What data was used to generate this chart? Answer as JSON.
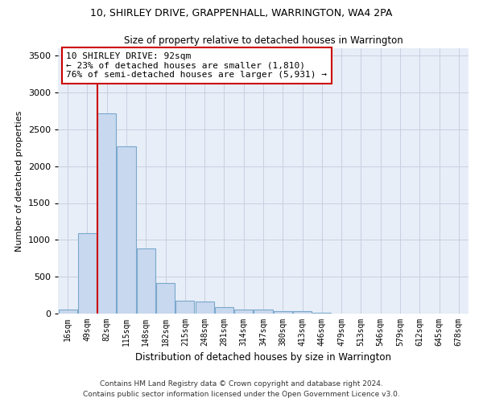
{
  "title": "10, SHIRLEY DRIVE, GRAPPENHALL, WARRINGTON, WA4 2PA",
  "subtitle": "Size of property relative to detached houses in Warrington",
  "xlabel": "Distribution of detached houses by size in Warrington",
  "ylabel": "Number of detached properties",
  "bar_color": "#c8d8ee",
  "bar_edge_color": "#7aa8cc",
  "grid_color": "#c8d0e0",
  "background_color": "#e8eef8",
  "categories": [
    "16sqm",
    "49sqm",
    "82sqm",
    "115sqm",
    "148sqm",
    "182sqm",
    "215sqm",
    "248sqm",
    "281sqm",
    "314sqm",
    "347sqm",
    "380sqm",
    "413sqm",
    "446sqm",
    "479sqm",
    "513sqm",
    "546sqm",
    "579sqm",
    "612sqm",
    "645sqm",
    "678sqm"
  ],
  "values": [
    50,
    1090,
    2720,
    2270,
    880,
    415,
    170,
    160,
    90,
    60,
    50,
    35,
    30,
    10,
    5,
    0,
    0,
    0,
    0,
    0,
    0
  ],
  "ylim": [
    0,
    3600
  ],
  "yticks": [
    0,
    500,
    1000,
    1500,
    2000,
    2500,
    3000,
    3500
  ],
  "annotation_text": "10 SHIRLEY DRIVE: 92sqm\n← 23% of detached houses are smaller (1,810)\n76% of semi-detached houses are larger (5,931) →",
  "annotation_box_color": "#ffffff",
  "annotation_border_color": "#cc0000",
  "red_line_color": "#cc0000",
  "footer1": "Contains HM Land Registry data © Crown copyright and database right 2024.",
  "footer2": "Contains public sector information licensed under the Open Government Licence v3.0."
}
